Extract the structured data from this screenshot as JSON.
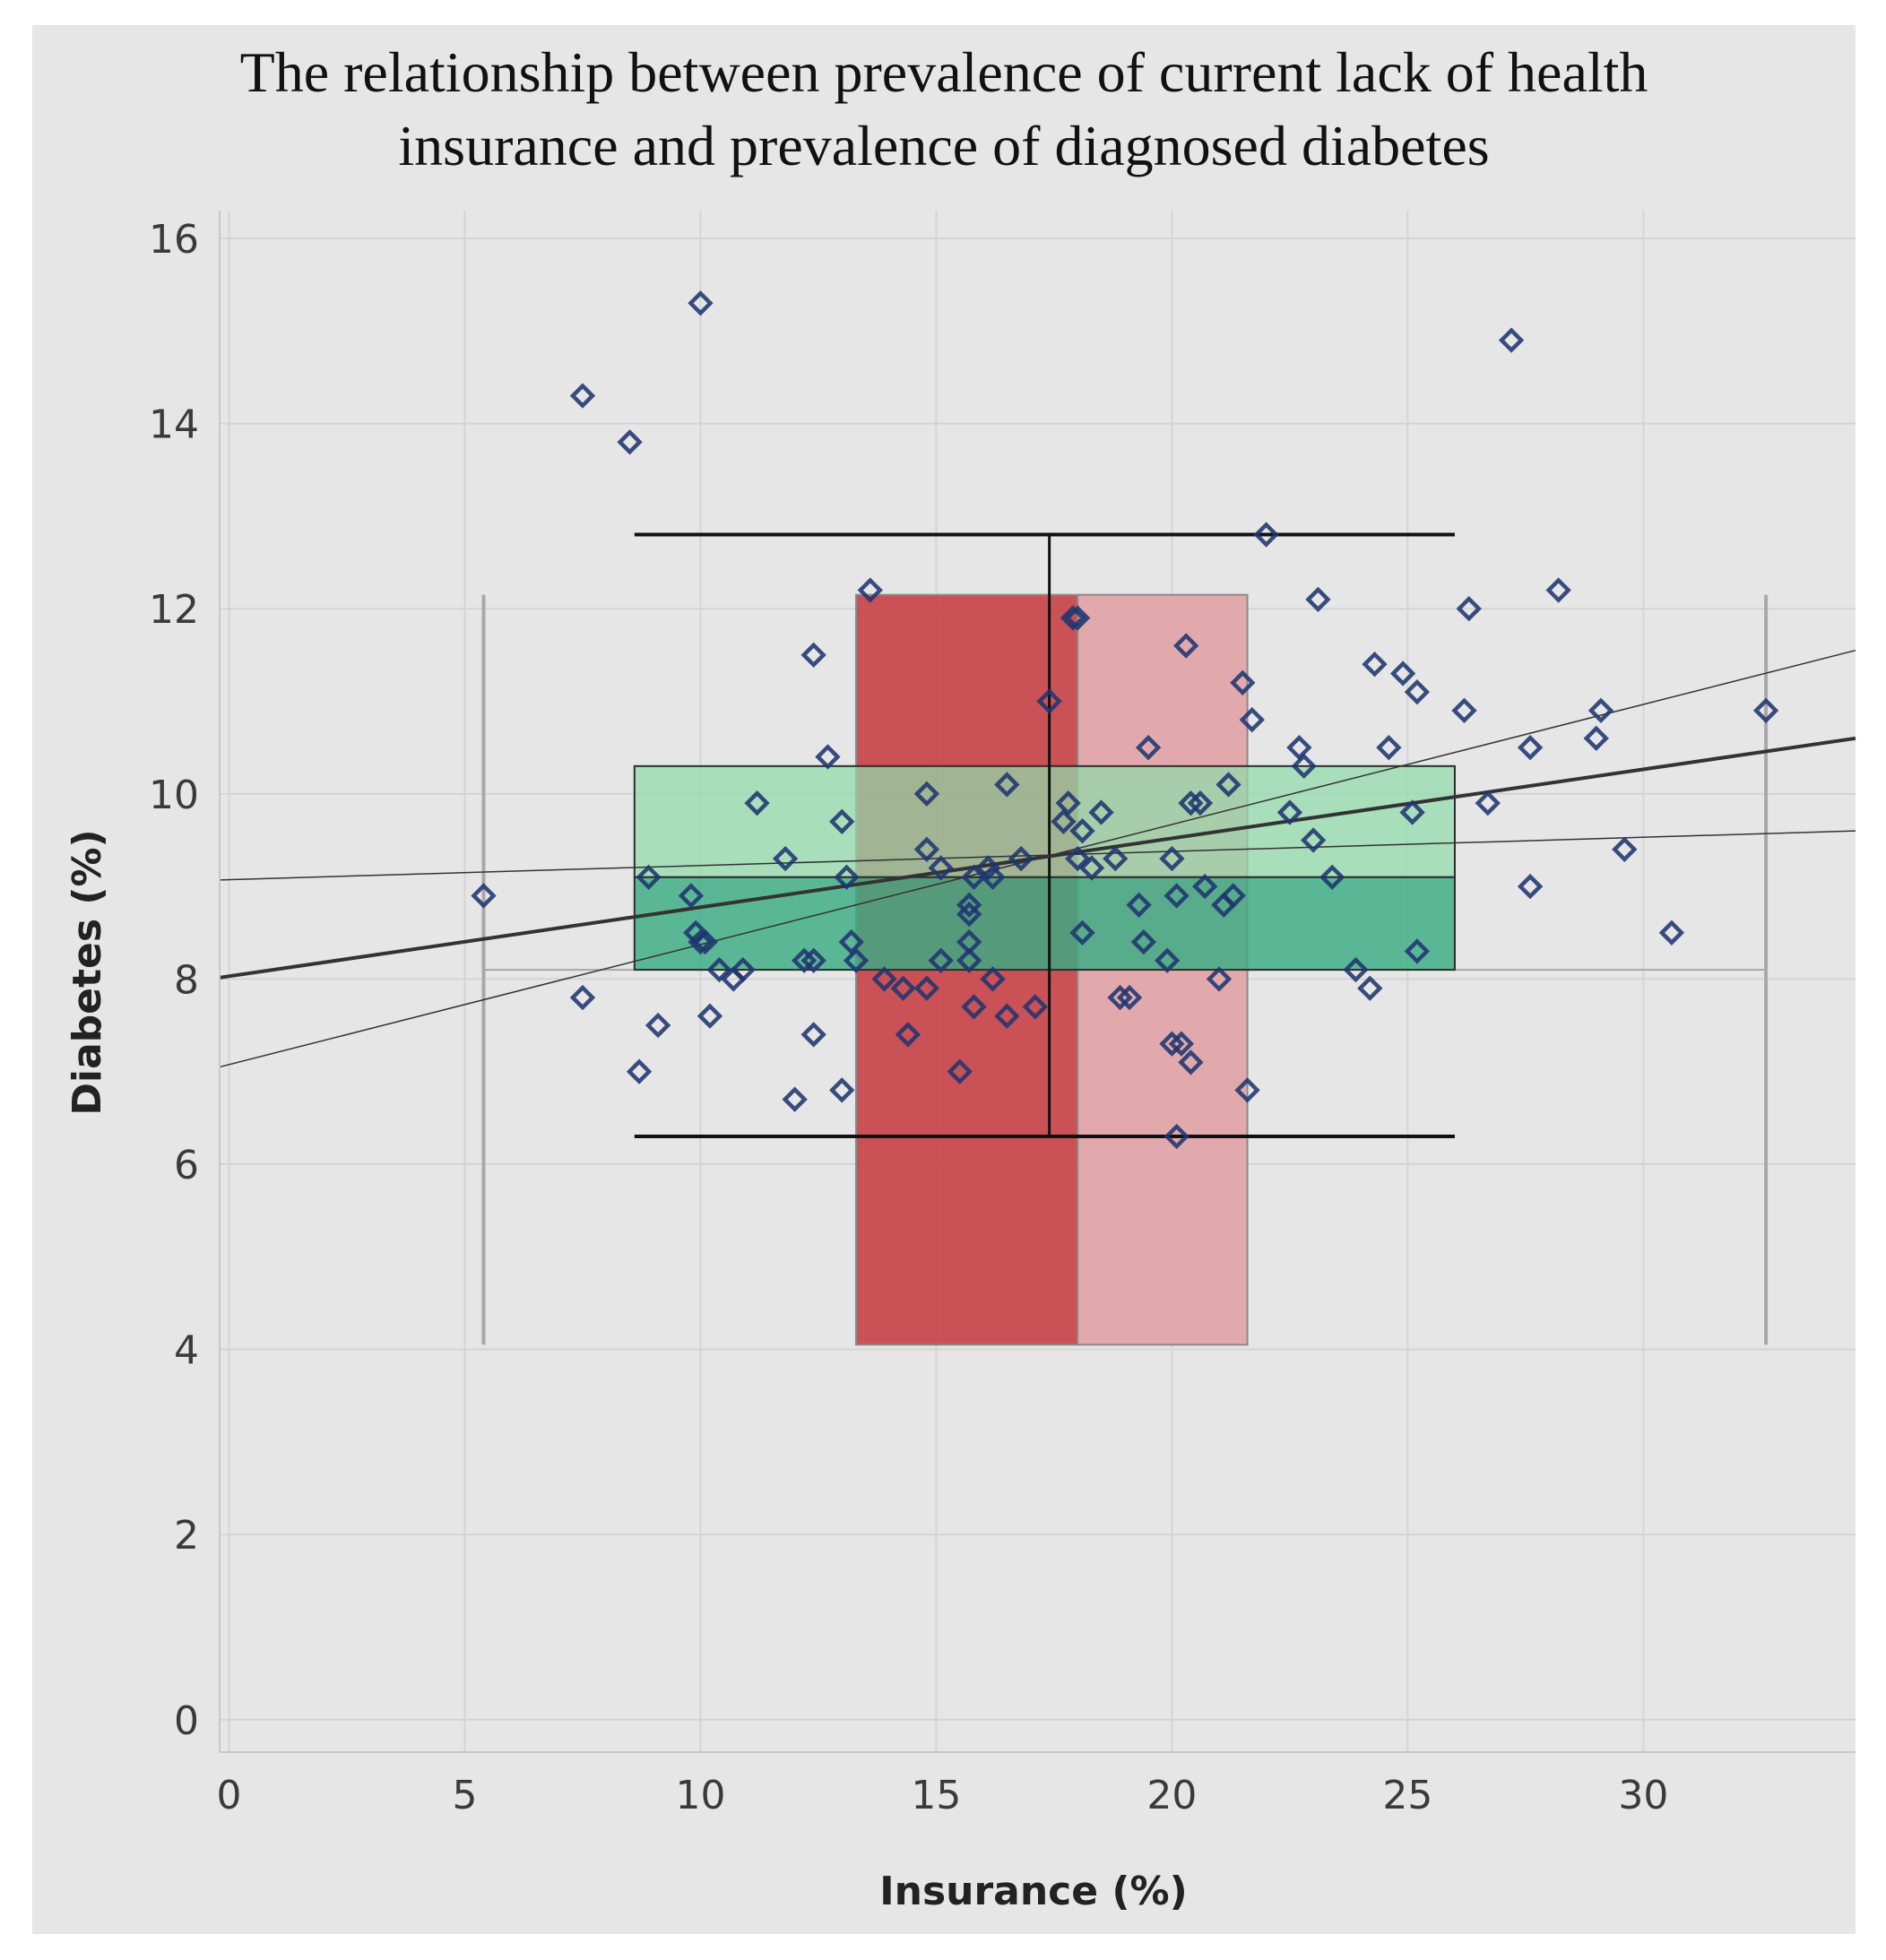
{
  "chart_data": {
    "type": "scatter",
    "title_lines": [
      "The relationship between prevalence of current lack of health",
      "insurance and prevalence of diagnosed diabetes"
    ],
    "xlabel": "Insurance (%)",
    "ylabel": "Diabetes (%)",
    "xlim": [
      -0.2,
      34.5
    ],
    "ylim": [
      -0.35,
      16.3
    ],
    "x_ticks": [
      0,
      5,
      10,
      15,
      20,
      25,
      30
    ],
    "y_ticks": [
      0,
      2,
      4,
      6,
      8,
      10,
      12,
      14,
      16
    ],
    "grid": true,
    "colors": {
      "points": "#1f3570",
      "red_box_dark": "#c8444a",
      "red_box_light": "#e2a4a8",
      "green_box_light": "#92dbaa",
      "green_box_dark": "#3aac84",
      "whisker": "#111111",
      "range_line": "#a8a8a8",
      "trend": "#333333"
    },
    "points": [
      [
        5.4,
        8.9
      ],
      [
        7.5,
        14.3
      ],
      [
        7.5,
        7.8
      ],
      [
        8.5,
        13.8
      ],
      [
        8.7,
        7.0
      ],
      [
        8.9,
        9.1
      ],
      [
        9.1,
        7.5
      ],
      [
        9.8,
        8.9
      ],
      [
        9.9,
        8.5
      ],
      [
        10.0,
        15.3
      ],
      [
        10.0,
        8.4
      ],
      [
        10.1,
        8.4
      ],
      [
        10.2,
        7.6
      ],
      [
        10.4,
        8.1
      ],
      [
        10.7,
        8.0
      ],
      [
        10.9,
        8.1
      ],
      [
        11.2,
        9.9
      ],
      [
        11.8,
        9.3
      ],
      [
        12.0,
        6.7
      ],
      [
        12.2,
        8.2
      ],
      [
        12.4,
        7.4
      ],
      [
        12.4,
        11.5
      ],
      [
        12.4,
        8.2
      ],
      [
        12.7,
        10.4
      ],
      [
        13.0,
        6.8
      ],
      [
        13.0,
        9.7
      ],
      [
        13.1,
        9.1
      ],
      [
        13.2,
        8.4
      ],
      [
        13.3,
        8.2
      ],
      [
        13.6,
        12.2
      ],
      [
        13.9,
        8.0
      ],
      [
        14.3,
        7.9
      ],
      [
        14.4,
        7.4
      ],
      [
        14.8,
        10.0
      ],
      [
        14.8,
        7.9
      ],
      [
        14.8,
        9.4
      ],
      [
        15.1,
        9.2
      ],
      [
        15.1,
        8.2
      ],
      [
        15.5,
        7.0
      ],
      [
        15.7,
        8.8
      ],
      [
        15.7,
        8.4
      ],
      [
        15.7,
        8.2
      ],
      [
        15.7,
        8.7
      ],
      [
        15.8,
        7.7
      ],
      [
        15.8,
        9.1
      ],
      [
        16.1,
        9.2
      ],
      [
        16.2,
        8.0
      ],
      [
        16.2,
        9.1
      ],
      [
        16.5,
        10.1
      ],
      [
        16.5,
        7.6
      ],
      [
        16.8,
        9.3
      ],
      [
        17.1,
        7.7
      ],
      [
        17.4,
        11.0
      ],
      [
        17.7,
        9.7
      ],
      [
        17.8,
        9.9
      ],
      [
        17.9,
        11.9
      ],
      [
        18.0,
        9.3
      ],
      [
        18.0,
        11.9
      ],
      [
        18.1,
        8.5
      ],
      [
        18.1,
        9.6
      ],
      [
        18.3,
        9.2
      ],
      [
        18.5,
        9.8
      ],
      [
        18.8,
        9.3
      ],
      [
        18.9,
        7.8
      ],
      [
        19.1,
        7.8
      ],
      [
        19.3,
        8.8
      ],
      [
        19.4,
        8.4
      ],
      [
        19.5,
        10.5
      ],
      [
        19.9,
        8.2
      ],
      [
        20.0,
        9.3
      ],
      [
        20.0,
        7.3
      ],
      [
        20.1,
        8.9
      ],
      [
        20.1,
        6.3
      ],
      [
        20.2,
        7.3
      ],
      [
        20.3,
        11.6
      ],
      [
        20.4,
        9.9
      ],
      [
        20.4,
        7.1
      ],
      [
        20.6,
        9.9
      ],
      [
        20.7,
        9.0
      ],
      [
        21.0,
        8.0
      ],
      [
        21.1,
        8.8
      ],
      [
        21.2,
        10.1
      ],
      [
        21.3,
        8.9
      ],
      [
        21.5,
        11.2
      ],
      [
        21.6,
        6.8
      ],
      [
        21.7,
        10.8
      ],
      [
        22.0,
        12.8
      ],
      [
        22.5,
        9.8
      ],
      [
        22.7,
        10.5
      ],
      [
        22.8,
        10.3
      ],
      [
        23.0,
        9.5
      ],
      [
        23.1,
        12.1
      ],
      [
        23.4,
        9.1
      ],
      [
        23.9,
        8.1
      ],
      [
        24.2,
        7.9
      ],
      [
        24.3,
        11.4
      ],
      [
        24.6,
        10.5
      ],
      [
        24.9,
        11.3
      ],
      [
        25.1,
        9.8
      ],
      [
        25.2,
        11.1
      ],
      [
        25.2,
        8.3
      ],
      [
        26.2,
        10.9
      ],
      [
        26.3,
        12.0
      ],
      [
        26.7,
        9.9
      ],
      [
        27.2,
        14.9
      ],
      [
        27.6,
        10.5
      ],
      [
        27.6,
        9.0
      ],
      [
        28.2,
        12.2
      ],
      [
        29.0,
        10.6
      ],
      [
        29.1,
        10.9
      ],
      [
        29.6,
        9.4
      ],
      [
        30.6,
        8.5
      ],
      [
        32.6,
        10.9
      ]
    ],
    "insurance_box": {
      "y_range": [
        4.05,
        12.15
      ],
      "q1": 13.3,
      "median": 18.0,
      "q3": 21.6
    },
    "diabetes_box": {
      "x_range": [
        8.6,
        26.0
      ],
      "q1": 8.1,
      "median": 9.1,
      "q3": 10.3
    },
    "x_whisker": {
      "y": 6.3,
      "min": 8.6,
      "max": 26.0,
      "x_center": 17.4,
      "y_top": 12.8
    },
    "y_whisker": {
      "x_center": 17.4,
      "x_range": [
        8.6,
        26.0
      ],
      "min": 6.3,
      "max": 12.8
    },
    "range_markers": {
      "x_min": 5.4,
      "x_max": 32.6,
      "y_bottom": 4.05,
      "y_top": 12.15,
      "ref_y": 8.1
    },
    "trend_line": {
      "intercept": 8.03,
      "slope": 0.0745
    },
    "confidence_band": {
      "upper": [
        [
          -0.2,
          9.07
        ],
        [
          34.5,
          9.6
        ]
      ],
      "lower": [
        [
          -0.2,
          7.05
        ],
        [
          34.5,
          11.55
        ]
      ]
    }
  }
}
